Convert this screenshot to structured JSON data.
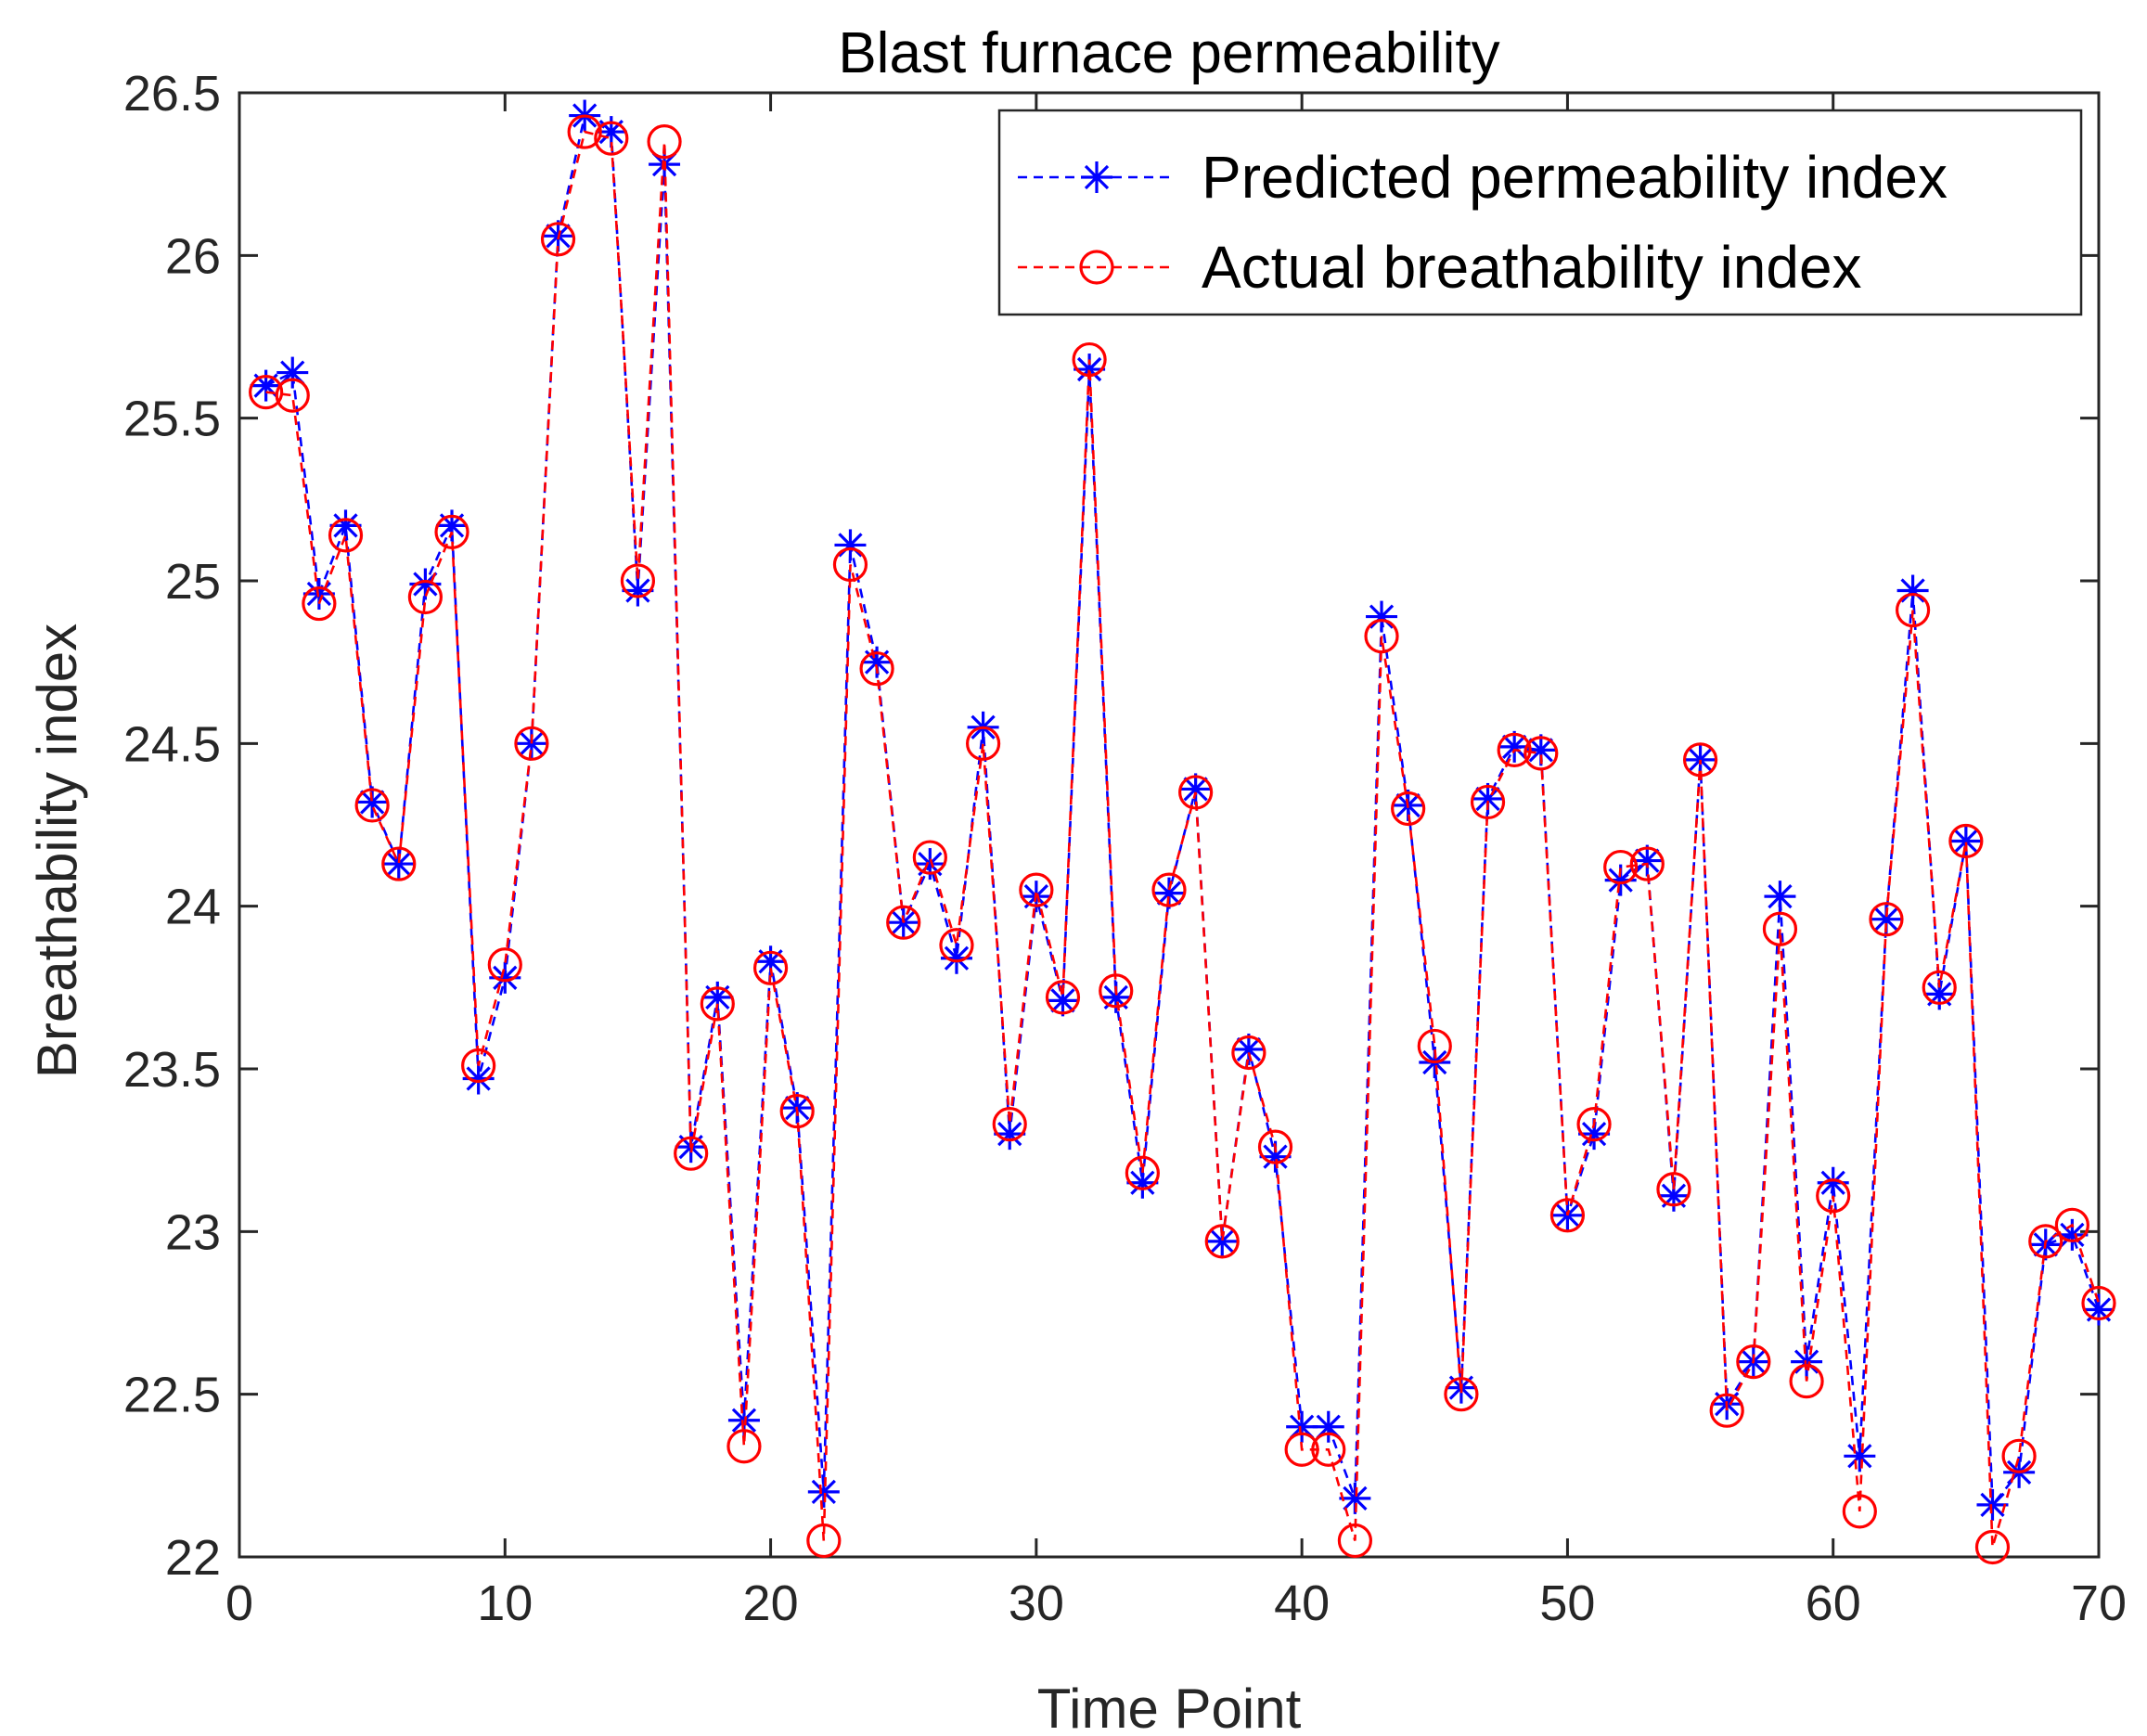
{
  "chart_data": {
    "type": "line",
    "title": "Blast furnace permeability",
    "xlabel": "Time Point",
    "ylabel": "Breathability index",
    "xlim": [
      0,
      70
    ],
    "ylim": [
      22,
      26.5
    ],
    "xticks": [
      0,
      10,
      20,
      30,
      40,
      50,
      60,
      70
    ],
    "yticks": [
      22,
      22.5,
      23,
      23.5,
      24,
      24.5,
      25,
      25.5,
      26,
      26.5
    ],
    "xtick_labels": [
      "0",
      "10",
      "20",
      "30",
      "40",
      "50",
      "60",
      "70"
    ],
    "ytick_labels": [
      "22",
      "22.5",
      "23",
      "23.5",
      "24",
      "24.5",
      "25",
      "25.5",
      "26",
      "26.5"
    ],
    "grid": false,
    "legend_position": "top-right",
    "x": [
      1,
      2,
      3,
      4,
      5,
      6,
      7,
      8,
      9,
      10,
      11,
      12,
      13,
      14,
      15,
      16,
      17,
      18,
      19,
      20,
      21,
      22,
      23,
      24,
      25,
      26,
      27,
      28,
      29,
      30,
      31,
      32,
      33,
      34,
      35,
      36,
      37,
      38,
      39,
      40,
      41,
      42,
      43,
      44,
      45,
      46,
      47,
      48,
      49,
      50,
      51,
      52,
      53,
      54,
      55,
      56,
      57,
      58,
      59,
      60,
      61,
      62,
      63,
      64,
      65,
      66,
      67,
      68,
      69,
      70
    ],
    "series": [
      {
        "name": "Predicted permeability index",
        "color": "#0000ff",
        "marker": "asterisk",
        "line_style": "dashed",
        "values": [
          25.6,
          25.64,
          24.96,
          25.17,
          24.32,
          24.13,
          24.99,
          25.17,
          23.47,
          23.78,
          24.5,
          26.06,
          26.43,
          26.38,
          24.97,
          26.28,
          23.26,
          23.72,
          22.42,
          23.83,
          23.38,
          22.2,
          25.11,
          24.75,
          23.95,
          24.13,
          23.84,
          24.55,
          23.3,
          24.03,
          23.71,
          25.65,
          23.72,
          23.15,
          24.04,
          24.36,
          22.97,
          23.56,
          23.23,
          22.4,
          22.4,
          22.18,
          24.89,
          24.31,
          23.52,
          22.52,
          24.33,
          24.49,
          24.48,
          23.05,
          23.3,
          24.08,
          24.14,
          23.11,
          24.45,
          22.47,
          22.6,
          24.03,
          22.6,
          23.15,
          22.31,
          23.96,
          24.97,
          23.73,
          24.2,
          22.16,
          22.26,
          22.96,
          22.99,
          22.76
        ]
      },
      {
        "name": "Actual breathability index",
        "color": "#ff0000",
        "marker": "circle",
        "line_style": "dashed",
        "values": [
          25.58,
          25.57,
          24.93,
          25.14,
          24.31,
          24.13,
          24.95,
          25.15,
          23.51,
          23.82,
          24.5,
          26.05,
          26.38,
          26.36,
          25.0,
          26.35,
          23.24,
          23.7,
          22.34,
          23.81,
          23.37,
          22.05,
          25.05,
          24.73,
          23.95,
          24.15,
          23.88,
          24.5,
          23.33,
          24.05,
          23.72,
          25.68,
          23.74,
          23.18,
          24.05,
          24.35,
          22.97,
          23.55,
          23.26,
          22.33,
          22.33,
          22.05,
          24.83,
          24.3,
          23.57,
          22.5,
          24.32,
          24.48,
          24.47,
          23.05,
          23.33,
          24.12,
          24.13,
          23.13,
          24.45,
          22.45,
          22.6,
          23.93,
          22.54,
          23.11,
          22.14,
          23.96,
          24.91,
          23.75,
          24.2,
          22.03,
          22.31,
          22.97,
          23.02,
          22.78
        ]
      }
    ]
  }
}
